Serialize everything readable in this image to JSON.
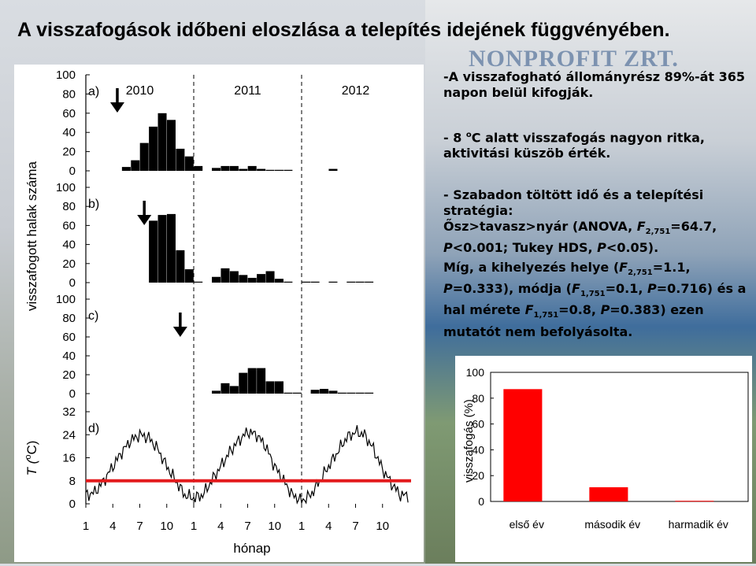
{
  "title": "A visszafogások időbeni eloszlása a telepítés idejének függvényében.",
  "watermark": "NONPROFIT ZRT.",
  "bullets": {
    "b1": "-A visszafogható állományrész 89%-át 365 napon belül kifogják.",
    "b2_pre": "- 8 ",
    "b2_sup": "o",
    "b2_post": "C alatt visszafogás nagyon ritka, aktivitási küszöb érték.",
    "b3_l1": "- Szabadon töltött idő és a telepítési stratégia:",
    "b3_l2a": "Ősz>tavasz>nyár (ANOVA, ",
    "b3_l2f": "F",
    "b3_l2sub": "2,751",
    "b3_l2b": "=64.7,",
    "b3_l3a": "P",
    "b3_l3b": "<0.001; Tukey HDS, ",
    "b3_l3c": "P",
    "b3_l3d": "<0.05).",
    "b4_l1a": "Míg, a kihelyezés helye (",
    "b4_l1f": "F",
    "b4_l1sub": "2,751",
    "b4_l1b": "=1.1,",
    "b4_l2a": "P",
    "b4_l2b": "=0.333), módja (",
    "b4_l2f": "F",
    "b4_l2sub": "1,751",
    "b4_l2c": "=0.1, ",
    "b4_l2p": "P",
    "b4_l2d": "=0.716) és a",
    "b4_l3a": "hal mérete ",
    "b4_l3f": "F",
    "b4_l3sub": "1,751",
    "b4_l3b": "=0.8, ",
    "b4_l3p": "P",
    "b4_l3c": "=0.383) ezen",
    "b4_l4": "mutatót nem befolyásolta."
  },
  "chart_data": [
    {
      "type": "bar",
      "ylabel": "visszafogott halak száma",
      "xlabel": "hónap",
      "year_labels": [
        "2010",
        "2011",
        "2012"
      ],
      "x_ticks": [
        "1",
        "4",
        "7",
        "10",
        "1",
        "4",
        "7",
        "10",
        "1",
        "4",
        "7",
        "10"
      ],
      "month_range": [
        1,
        36
      ],
      "y_ticks": [
        "0",
        "20",
        "40",
        "60",
        "80",
        "100"
      ],
      "ylim": [
        0,
        100
      ],
      "panels": [
        {
          "label": "a)",
          "release_month": 4,
          "values": [
            0,
            0,
            0,
            0,
            4,
            11,
            29,
            46,
            60,
            53,
            23,
            15,
            5,
            0,
            3,
            5,
            5,
            2,
            5,
            2,
            1,
            1,
            1,
            0,
            0,
            0,
            0,
            2,
            0,
            0,
            0,
            0,
            0,
            0,
            0,
            0
          ]
        },
        {
          "label": "b)",
          "release_month": 7,
          "values": [
            0,
            0,
            0,
            0,
            0,
            0,
            0,
            65,
            71,
            72,
            34,
            14,
            1,
            0,
            6,
            15,
            12,
            8,
            5,
            9,
            12,
            4,
            1,
            0,
            1,
            1,
            0,
            1,
            0,
            1,
            1,
            1,
            0,
            0,
            0,
            0
          ]
        },
        {
          "label": "c)",
          "release_month": 11,
          "values": [
            0,
            0,
            0,
            0,
            0,
            0,
            0,
            0,
            0,
            0,
            0,
            0,
            0,
            0,
            3,
            11,
            8,
            22,
            27,
            27,
            13,
            13,
            1,
            1,
            0,
            4,
            5,
            3,
            1,
            1,
            1,
            1,
            0,
            0,
            0,
            0
          ]
        }
      ]
    },
    {
      "type": "line",
      "panel_label": "d)",
      "ylabel_main": "T",
      "ylabel_sup": "o",
      "ylabel_unit": "C",
      "y_ticks": [
        "0",
        "8",
        "16",
        "24",
        "32"
      ],
      "ylim": [
        0,
        32
      ],
      "threshold": 8,
      "threshold_color": "#e31a1c",
      "temperature_monthly": [
        3,
        4,
        8,
        13,
        18,
        22,
        24,
        23,
        19,
        13,
        8,
        3,
        2,
        3,
        8,
        13,
        18,
        22,
        25,
        24,
        20,
        13,
        8,
        3,
        1,
        3,
        8,
        13,
        18,
        23,
        25,
        24,
        19,
        12,
        7,
        3
      ]
    },
    {
      "type": "bar",
      "ylabel": "visszafogás (%)",
      "categories": [
        "első év",
        "második év",
        "harmadik év"
      ],
      "values": [
        87,
        11,
        0.5
      ],
      "y_ticks": [
        "0",
        "20",
        "40",
        "60",
        "80",
        "100"
      ],
      "ylim": [
        0,
        100
      ],
      "color": "#ff0000"
    }
  ]
}
